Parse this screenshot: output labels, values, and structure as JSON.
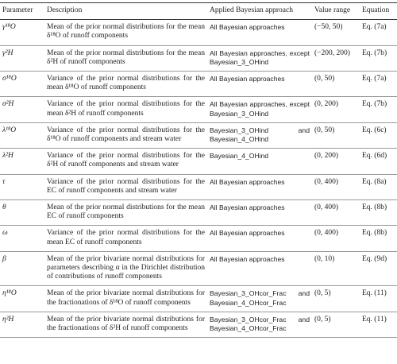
{
  "table": {
    "header": [
      "Parameter",
      "Description",
      "Applied Bayesian approach",
      "Value range",
      "Equation"
    ],
    "rows": [
      [
        "γ¹⁸O",
        "Mean of the prior normal distributions for the mean δ¹⁸O of runoff components",
        "All Bayesian approaches",
        "(−50, 50)",
        "Eq. (7a)"
      ],
      [
        "γ²H",
        "Mean of the prior normal distributions for the mean δ²H of runoff components",
        "All Bayesian approaches, except Bayesian_3_OHind",
        "(−200, 200)",
        "Eq. (7b)"
      ],
      [
        "σ¹⁸O",
        "Variance of the prior normal distributions for the mean δ¹⁸O of runoff components",
        "All Bayesian approaches",
        "(0, 50)",
        "Eq. (7a)"
      ],
      [
        "σ²H",
        "Variance of the prior normal distributions for the mean δ²H of runoff components",
        "All Bayesian approaches, except Bayesian_3_OHind",
        "(0, 200)",
        "Eq. (7b)"
      ],
      [
        "λ¹⁸O",
        "Variance of the prior normal distributions for the δ¹⁸O of runoff components and stream water",
        "Bayesian_3_OHind and Bayesian_4_OHind",
        "(0, 50)",
        "Eq. (6c)"
      ],
      [
        "λ²H",
        "Variance of the prior normal distributions for the δ²H of runoff components and stream water",
        "Bayesian_4_OHind",
        "(0, 200)",
        "Eq. (6d)"
      ],
      [
        "τ",
        "Variance of the prior normal distributions for the EC of runoff components and stream water",
        "All Bayesian approaches",
        "(0, 400)",
        "Eq. (8a)"
      ],
      [
        "θ",
        "Mean of the prior normal distributions for the mean EC of runoff components",
        "All Bayesian approaches",
        "(0, 400)",
        "Eq. (8b)"
      ],
      [
        "ω",
        "Variance of the prior normal distributions for the mean EC of runoff components",
        "All Bayesian approaches",
        "(0, 400)",
        "Eq. (8b)"
      ],
      [
        "β",
        "Mean of the prior bivariate normal distributions for parameters describing α in the Dirichlet distribution of contributions of runoff components",
        "All Bayesian approaches",
        "(0, 10)",
        "Eq. (9d)"
      ],
      [
        "η¹⁸O",
        "Mean of the prior bivariate normal distributions for the fractionations of δ¹⁸O of runoff components",
        "Bayesian_3_OHcor_Frac and Bayesian_4_OHcor_Frac",
        "(0, 5)",
        "Eq. (11)"
      ],
      [
        "η²H",
        "Mean of the prior bivariate normal distributions for the fractionations of δ²H of runoff components",
        "Bayesian_3_OHcor_Frac and Bayesian_4_OHcor_Frac",
        "(0, 5)",
        "Eq. (11)"
      ]
    ]
  }
}
